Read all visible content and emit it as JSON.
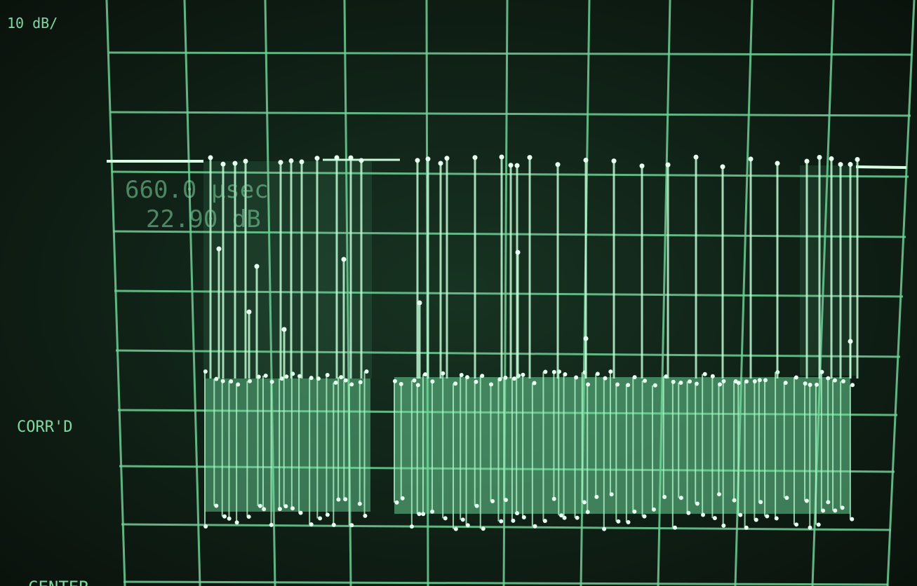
{
  "scale_label": "10 dB/",
  "marker": {
    "time": "660.0 µsec",
    "level": "22.90 dB"
  },
  "status": "CORR'D",
  "footer": "CENTER"
}
